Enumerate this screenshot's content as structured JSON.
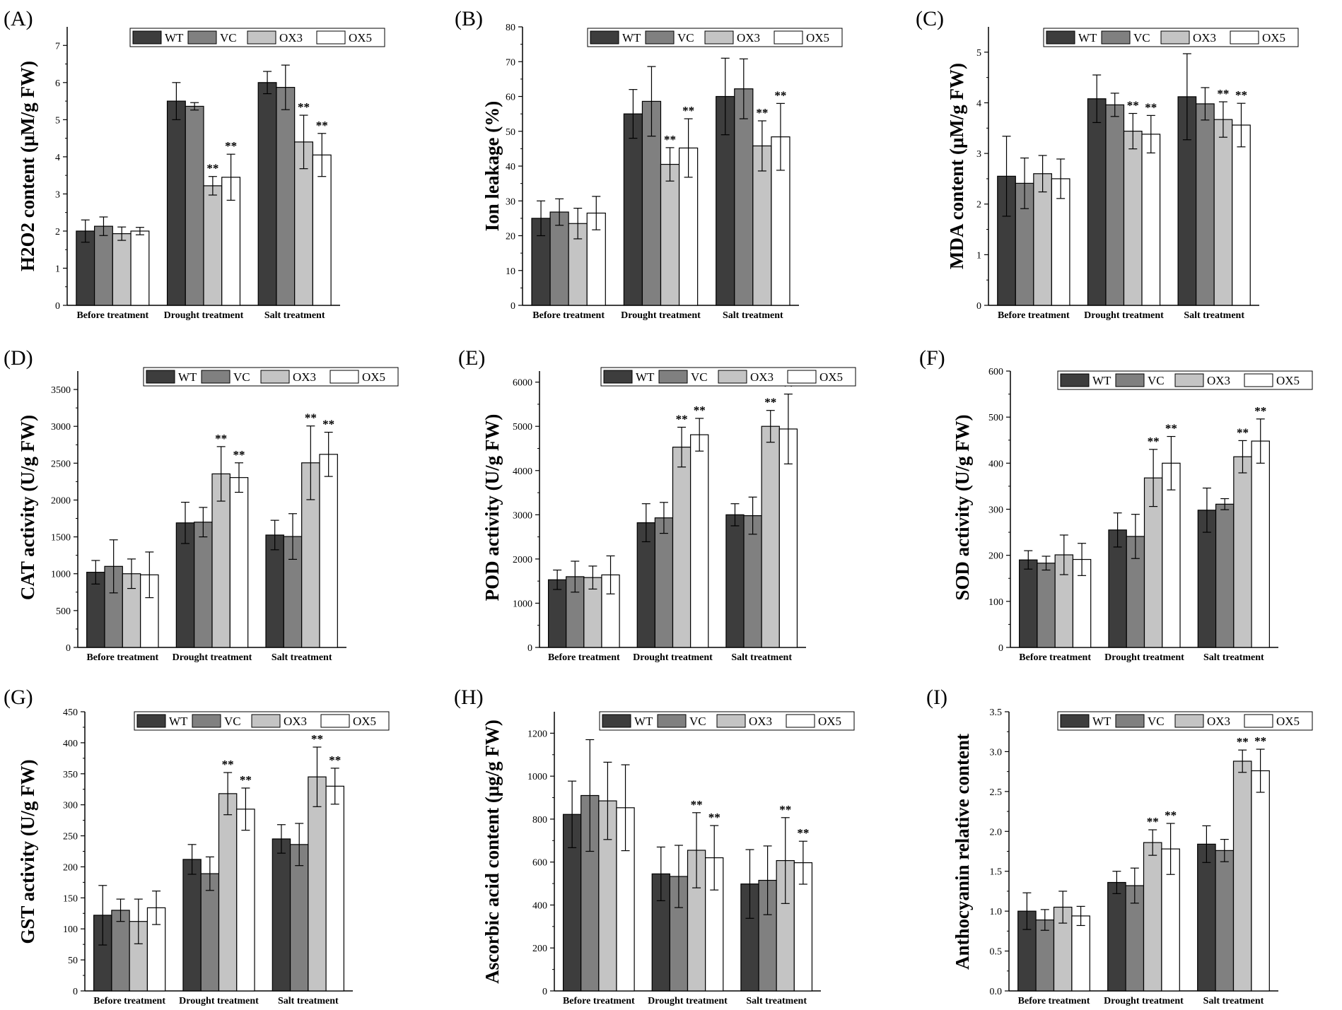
{
  "figure": {
    "legend_labels": [
      "WT",
      "VC",
      "OX3",
      "OX5"
    ],
    "categories": [
      "Before treatment",
      "Drought treatment",
      "Salt treatment"
    ],
    "series_colors": [
      "#3d3d3d",
      "#808080",
      "#c4c4c4",
      "#ffffff"
    ]
  },
  "chart_data": [
    {
      "panel": "(A)",
      "type": "bar",
      "ylabel": "H2O2 content (μM/g FW)",
      "ylim": [
        0,
        7.5
      ],
      "yticks": [
        0,
        1,
        2,
        3,
        4,
        5,
        6,
        7
      ],
      "categories": [
        "Before treatment",
        "Drought treatment",
        "Salt treatment"
      ],
      "series": [
        {
          "name": "WT",
          "values": [
            2.0,
            5.5,
            6.0
          ],
          "errors": [
            0.3,
            0.5,
            0.3
          ]
        },
        {
          "name": "VC",
          "values": [
            2.13,
            5.36,
            5.87
          ],
          "errors": [
            0.25,
            0.1,
            0.6
          ]
        },
        {
          "name": "OX3",
          "values": [
            1.93,
            3.22,
            4.4
          ],
          "errors": [
            0.18,
            0.25,
            0.72
          ]
        },
        {
          "name": "OX5",
          "values": [
            2.0,
            3.45,
            4.05
          ],
          "errors": [
            0.1,
            0.62,
            0.58
          ]
        }
      ],
      "significance": [
        [
          "",
          "",
          ""
        ],
        [
          "",
          "",
          ""
        ],
        [
          "",
          "**",
          "**"
        ],
        [
          "",
          "**",
          "**"
        ]
      ]
    },
    {
      "panel": "(B)",
      "type": "bar",
      "ylabel": "Ion leakage (%)",
      "ylim": [
        0,
        80
      ],
      "yticks": [
        0,
        10,
        20,
        30,
        40,
        50,
        60,
        70,
        80
      ],
      "categories": [
        "Before treatment",
        "Drought treatment",
        "Salt treatment"
      ],
      "series": [
        {
          "name": "WT",
          "values": [
            25,
            55,
            60
          ],
          "errors": [
            5,
            7,
            11
          ]
        },
        {
          "name": "VC",
          "values": [
            26.8,
            58.6,
            62.2
          ],
          "errors": [
            3.8,
            10,
            8.6
          ]
        },
        {
          "name": "OX3",
          "values": [
            23.5,
            40.5,
            45.8
          ],
          "errors": [
            4.4,
            4.8,
            7.2
          ]
        },
        {
          "name": "OX5",
          "values": [
            26.5,
            45.2,
            48.4
          ],
          "errors": [
            4.8,
            8.4,
            9.6
          ]
        }
      ],
      "significance": [
        [
          "",
          "",
          ""
        ],
        [
          "",
          "",
          ""
        ],
        [
          "",
          "**",
          "**"
        ],
        [
          "",
          "**",
          "**"
        ]
      ]
    },
    {
      "panel": "(C)",
      "type": "bar",
      "ylabel": "MDA content (μM/g FW)",
      "ylim": [
        0,
        5.5
      ],
      "yticks": [
        0,
        1,
        2,
        3,
        4,
        5
      ],
      "categories": [
        "Before treatment",
        "Drought treatment",
        "Salt treatment"
      ],
      "series": [
        {
          "name": "WT",
          "values": [
            2.55,
            4.08,
            4.12
          ],
          "errors": [
            0.79,
            0.47,
            0.85
          ]
        },
        {
          "name": "VC",
          "values": [
            2.41,
            3.96,
            3.98
          ],
          "errors": [
            0.5,
            0.23,
            0.32
          ]
        },
        {
          "name": "OX3",
          "values": [
            2.6,
            3.44,
            3.67
          ],
          "errors": [
            0.36,
            0.35,
            0.35
          ]
        },
        {
          "name": "OX5",
          "values": [
            2.5,
            3.38,
            3.56
          ],
          "errors": [
            0.39,
            0.37,
            0.43
          ]
        }
      ],
      "significance": [
        [
          "",
          "",
          ""
        ],
        [
          "",
          "",
          ""
        ],
        [
          "",
          "**",
          "**"
        ],
        [
          "",
          "**",
          "**"
        ]
      ]
    },
    {
      "panel": "(D)",
      "type": "bar",
      "ylabel": "CAT activity (U/g FW)",
      "ylim": [
        0,
        3750
      ],
      "yticks": [
        0,
        500,
        1000,
        1500,
        2000,
        2500,
        3000,
        3500
      ],
      "categories": [
        "Before treatment",
        "Drought treatment",
        "Salt treatment"
      ],
      "series": [
        {
          "name": "WT",
          "values": [
            1020,
            1690,
            1525
          ],
          "errors": [
            160,
            280,
            200
          ]
        },
        {
          "name": "VC",
          "values": [
            1100,
            1700,
            1505
          ],
          "errors": [
            360,
            200,
            310
          ]
        },
        {
          "name": "OX3",
          "values": [
            1000,
            2355,
            2505
          ],
          "errors": [
            200,
            370,
            500
          ]
        },
        {
          "name": "OX5",
          "values": [
            985,
            2305,
            2620
          ],
          "errors": [
            310,
            200,
            300
          ]
        }
      ],
      "significance": [
        [
          "",
          "",
          ""
        ],
        [
          "",
          "",
          ""
        ],
        [
          "",
          "**",
          "**"
        ],
        [
          "",
          "**",
          "**"
        ]
      ]
    },
    {
      "panel": "(E)",
      "type": "bar",
      "ylabel": "POD activity (U/g FW)",
      "ylim": [
        0,
        6250
      ],
      "yticks": [
        0,
        1000,
        2000,
        3000,
        4000,
        5000,
        6000
      ],
      "categories": [
        "Before treatment",
        "Drought treatment",
        "Salt treatment"
      ],
      "series": [
        {
          "name": "WT",
          "values": [
            1530,
            2820,
            3000
          ],
          "errors": [
            220,
            430,
            250
          ]
        },
        {
          "name": "VC",
          "values": [
            1600,
            2930,
            2980
          ],
          "errors": [
            350,
            350,
            420
          ]
        },
        {
          "name": "OX3",
          "values": [
            1580,
            4530,
            5000
          ],
          "errors": [
            260,
            450,
            360
          ]
        },
        {
          "name": "OX5",
          "values": [
            1640,
            4810,
            4940
          ],
          "errors": [
            430,
            370,
            790
          ]
        }
      ],
      "significance": [
        [
          "",
          "",
          ""
        ],
        [
          "",
          "",
          ""
        ],
        [
          "",
          "**",
          "**"
        ],
        [
          "",
          "**",
          "**"
        ]
      ]
    },
    {
      "panel": "(F)",
      "type": "bar",
      "ylabel": "SOD activity (U/g FW)",
      "ylim": [
        0,
        600
      ],
      "yticks": [
        0,
        100,
        200,
        300,
        400,
        500,
        600
      ],
      "categories": [
        "Before treatment",
        "Drought treatment",
        "Salt treatment"
      ],
      "series": [
        {
          "name": "WT",
          "values": [
            190,
            255,
            298
          ],
          "errors": [
            20,
            37,
            48
          ]
        },
        {
          "name": "VC",
          "values": [
            183,
            241,
            311
          ],
          "errors": [
            15,
            48,
            12
          ]
        },
        {
          "name": "OX3",
          "values": [
            201,
            368,
            414
          ],
          "errors": [
            43,
            62,
            35
          ]
        },
        {
          "name": "OX5",
          "values": [
            191,
            400,
            448
          ],
          "errors": [
            35,
            58,
            48
          ]
        }
      ],
      "significance": [
        [
          "",
          "",
          ""
        ],
        [
          "",
          "",
          ""
        ],
        [
          "",
          "**",
          "**"
        ],
        [
          "",
          "**",
          "**"
        ]
      ]
    },
    {
      "panel": "(G)",
      "type": "bar",
      "ylabel": "GST activity (U/g FW)",
      "ylim": [
        0,
        450
      ],
      "yticks": [
        0,
        50,
        100,
        150,
        200,
        250,
        300,
        350,
        400,
        450
      ],
      "categories": [
        "Before treatment",
        "Drought treatment",
        "Salt treatment"
      ],
      "series": [
        {
          "name": "WT",
          "values": [
            122,
            212,
            245
          ],
          "errors": [
            48,
            24,
            23
          ]
        },
        {
          "name": "VC",
          "values": [
            130,
            189,
            236
          ],
          "errors": [
            18,
            27,
            34
          ]
        },
        {
          "name": "OX3",
          "values": [
            112,
            318,
            345
          ],
          "errors": [
            36,
            34,
            48
          ]
        },
        {
          "name": "OX5",
          "values": [
            134,
            293,
            330
          ],
          "errors": [
            27,
            34,
            29
          ]
        }
      ],
      "significance": [
        [
          "",
          "",
          ""
        ],
        [
          "",
          "",
          ""
        ],
        [
          "",
          "**",
          "**"
        ],
        [
          "",
          "**",
          "**"
        ]
      ]
    },
    {
      "panel": "(H)",
      "type": "bar",
      "ylabel": "Ascorbic acid content (μg/g FW)",
      "ylim": [
        0,
        1300
      ],
      "yticks": [
        0,
        200,
        400,
        600,
        800,
        1000,
        1200
      ],
      "categories": [
        "Before treatment",
        "Drought treatment",
        "Salt treatment"
      ],
      "series": [
        {
          "name": "WT",
          "values": [
            822,
            545,
            498
          ],
          "errors": [
            155,
            125,
            160
          ]
        },
        {
          "name": "VC",
          "values": [
            910,
            533,
            515
          ],
          "errors": [
            260,
            145,
            160
          ]
        },
        {
          "name": "OX3",
          "values": [
            885,
            655,
            607
          ],
          "errors": [
            180,
            175,
            200
          ]
        },
        {
          "name": "OX5",
          "values": [
            853,
            620,
            597
          ],
          "errors": [
            200,
            150,
            100
          ]
        }
      ],
      "significance": [
        [
          "",
          "",
          ""
        ],
        [
          "",
          "",
          ""
        ],
        [
          "",
          "**",
          "**"
        ],
        [
          "",
          "**",
          "**"
        ]
      ]
    },
    {
      "panel": "(I)",
      "type": "bar",
      "ylabel": "Anthocyanin relative content",
      "ylim": [
        0,
        3.5
      ],
      "yticks": [
        0.0,
        0.5,
        1.0,
        1.5,
        2.0,
        2.5,
        3.0,
        3.5
      ],
      "categories": [
        "Before treatment",
        "Drought treatment",
        "Salt treatment"
      ],
      "series": [
        {
          "name": "WT",
          "values": [
            1.0,
            1.36,
            1.84
          ],
          "errors": [
            0.23,
            0.14,
            0.23
          ]
        },
        {
          "name": "VC",
          "values": [
            0.89,
            1.32,
            1.76
          ],
          "errors": [
            0.13,
            0.22,
            0.14
          ]
        },
        {
          "name": "OX3",
          "values": [
            1.05,
            1.86,
            2.88
          ],
          "errors": [
            0.2,
            0.16,
            0.14
          ]
        },
        {
          "name": "OX5",
          "values": [
            0.94,
            1.78,
            2.76
          ],
          "errors": [
            0.12,
            0.32,
            0.27
          ]
        }
      ],
      "significance": [
        [
          "",
          "",
          ""
        ],
        [
          "",
          "",
          ""
        ],
        [
          "",
          "**",
          "**"
        ],
        [
          "",
          "**",
          "**"
        ]
      ]
    }
  ]
}
